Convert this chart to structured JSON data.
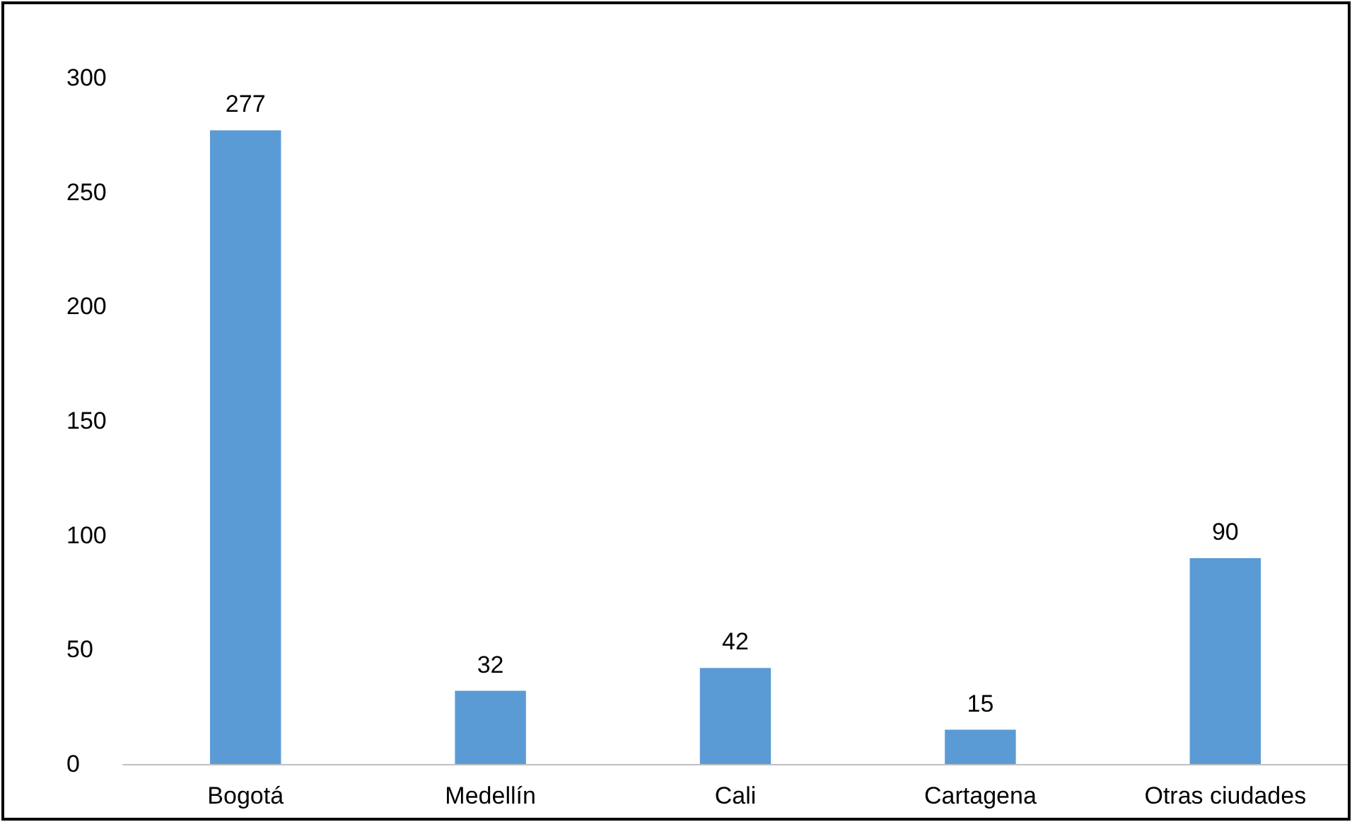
{
  "chart_data": {
    "type": "bar",
    "categories": [
      "Bogotá",
      "Medellín",
      "Cali",
      "Cartagena",
      "Otras ciudades"
    ],
    "values": [
      277,
      32,
      42,
      15,
      90
    ],
    "color": "#5b9bd5",
    "ylim": [
      0,
      300
    ],
    "yticks": [
      0,
      50,
      100,
      150,
      200,
      250,
      300
    ],
    "grid": false,
    "data_labels": true
  }
}
